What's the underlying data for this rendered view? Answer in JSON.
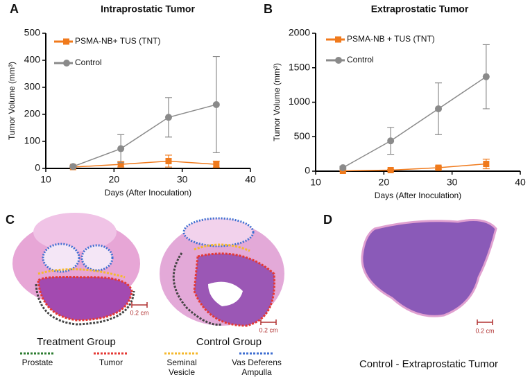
{
  "chart_data": [
    {
      "type": "line",
      "panel": "A",
      "title": "Intraprostatic Tumor",
      "xlabel": "Days (After Inoculation)",
      "ylabel": "Tumor Volume (mm³)",
      "x": [
        14,
        21,
        28,
        35
      ],
      "xlim": [
        10,
        40
      ],
      "xticks": [
        10,
        20,
        30,
        40
      ],
      "ylim": [
        0,
        500
      ],
      "yticks": [
        0,
        100,
        200,
        300,
        400,
        500
      ],
      "series": [
        {
          "name": "PSMA-NB+ TUS (TNT)",
          "color": "#f07a1c",
          "marker": "square",
          "values": [
            5,
            15,
            27,
            15
          ],
          "errors": [
            2,
            10,
            22,
            12
          ]
        },
        {
          "name": "Control",
          "color": "#8a8a8a",
          "marker": "circle",
          "values": [
            7,
            73,
            189,
            236
          ],
          "errors": [
            3,
            52,
            73,
            178
          ]
        }
      ]
    },
    {
      "type": "line",
      "panel": "B",
      "title": "Extraprostatic Tumor",
      "xlabel": "Days (After Inoculation)",
      "ylabel": "Tumor Volume (mm³)",
      "x": [
        14,
        21,
        28,
        35
      ],
      "xlim": [
        10,
        40
      ],
      "xticks": [
        10,
        20,
        30,
        40
      ],
      "ylim": [
        0,
        2000
      ],
      "yticks": [
        0,
        500,
        1000,
        1500,
        2000
      ],
      "series": [
        {
          "name": "PSMA-NB + TUS (TNT)",
          "color": "#f07a1c",
          "marker": "square",
          "values": [
            5,
            15,
            50,
            105
          ],
          "errors": [
            3,
            10,
            20,
            70
          ]
        },
        {
          "name": "Control",
          "color": "#8a8a8a",
          "marker": "circle",
          "values": [
            50,
            440,
            905,
            1370
          ],
          "errors": [
            20,
            195,
            375,
            465
          ]
        }
      ]
    }
  ],
  "panel_c": {
    "label": "C",
    "groups": [
      "Treatment Group",
      "Control Group"
    ],
    "scale": "0.2 cm",
    "legend": [
      {
        "lines": [
          "Prostate"
        ],
        "color": "#2e7d32"
      },
      {
        "lines": [
          "Tumor"
        ],
        "color": "#e53935"
      },
      {
        "lines": [
          "Seminal",
          "Vesicle"
        ],
        "color": "#f5b82e"
      },
      {
        "lines": [
          "Vas Deferens",
          "Ampulla"
        ],
        "color": "#3f6fd1"
      }
    ]
  },
  "panel_d": {
    "label": "D",
    "caption": "Control - Extraprostatic Tumor",
    "scale": "0.2 cm"
  }
}
